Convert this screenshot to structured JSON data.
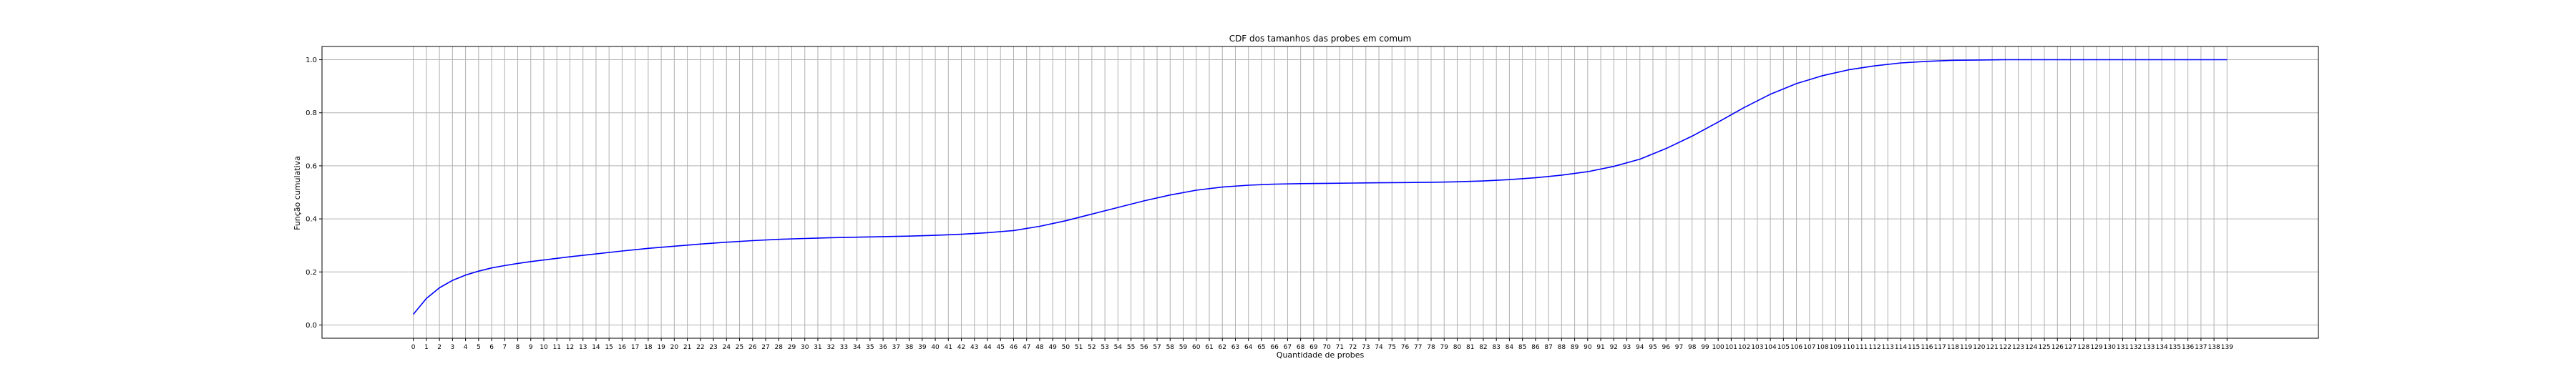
{
  "chart_data": {
    "type": "line",
    "title": "CDF dos tamanhos das probes em comum",
    "xlabel": "Quantidade de probes",
    "ylabel": "Função cumulativa",
    "xlim": [
      -7,
      146
    ],
    "ylim": [
      -0.05,
      1.05
    ],
    "xticks": [
      0,
      1,
      2,
      3,
      4,
      5,
      6,
      7,
      8,
      9,
      10,
      11,
      12,
      13,
      14,
      15,
      16,
      17,
      18,
      19,
      20,
      21,
      22,
      23,
      24,
      25,
      26,
      27,
      28,
      29,
      30,
      31,
      32,
      33,
      34,
      35,
      36,
      37,
      38,
      39,
      40,
      41,
      42,
      43,
      44,
      45,
      46,
      47,
      48,
      49,
      50,
      51,
      52,
      53,
      54,
      55,
      56,
      57,
      58,
      59,
      60,
      61,
      62,
      63,
      64,
      65,
      66,
      67,
      68,
      69,
      70,
      71,
      72,
      73,
      74,
      75,
      76,
      77,
      78,
      79,
      80,
      81,
      82,
      83,
      84,
      85,
      86,
      87,
      88,
      89,
      90,
      91,
      92,
      93,
      94,
      95,
      96,
      97,
      98,
      99,
      100,
      101,
      102,
      103,
      104,
      105,
      106,
      107,
      108,
      109,
      110,
      111,
      112,
      113,
      114,
      115,
      116,
      117,
      118,
      119,
      120,
      121,
      122,
      123,
      124,
      125,
      126,
      127,
      128,
      129,
      130,
      131,
      132,
      133,
      134,
      135,
      136,
      137,
      138,
      139
    ],
    "yticks": [
      "0.0",
      "0.2",
      "0.4",
      "0.6",
      "0.8",
      "1.0"
    ],
    "grid": true,
    "series": [
      {
        "color": "#0000ff",
        "x": [
          0,
          1,
          2,
          3,
          4,
          5,
          6,
          7,
          8,
          9,
          10,
          12,
          14,
          16,
          18,
          20,
          22,
          24,
          26,
          28,
          30,
          32,
          34,
          36,
          38,
          40,
          42,
          44,
          46,
          48,
          50,
          52,
          54,
          56,
          58,
          60,
          62,
          64,
          66,
          68,
          70,
          72,
          74,
          76,
          78,
          80,
          82,
          84,
          86,
          88,
          90,
          92,
          94,
          96,
          98,
          100,
          102,
          104,
          106,
          108,
          110,
          112,
          114,
          116,
          118,
          120,
          122,
          124,
          126,
          128,
          130,
          132,
          134,
          136,
          138,
          139
        ],
        "y": [
          0.04,
          0.1,
          0.14,
          0.168,
          0.188,
          0.203,
          0.215,
          0.224,
          0.232,
          0.239,
          0.245,
          0.257,
          0.268,
          0.279,
          0.289,
          0.297,
          0.305,
          0.312,
          0.318,
          0.323,
          0.326,
          0.329,
          0.331,
          0.333,
          0.335,
          0.338,
          0.342,
          0.348,
          0.356,
          0.372,
          0.393,
          0.418,
          0.443,
          0.468,
          0.49,
          0.508,
          0.52,
          0.527,
          0.531,
          0.533,
          0.534,
          0.535,
          0.536,
          0.537,
          0.538,
          0.54,
          0.543,
          0.548,
          0.555,
          0.565,
          0.578,
          0.598,
          0.625,
          0.665,
          0.712,
          0.765,
          0.82,
          0.87,
          0.91,
          0.94,
          0.962,
          0.977,
          0.988,
          0.994,
          0.998,
          0.999,
          1.0,
          1.0,
          1.0,
          1.0,
          1.0,
          1.0,
          1.0,
          1.0,
          1.0,
          1.0
        ]
      }
    ]
  }
}
